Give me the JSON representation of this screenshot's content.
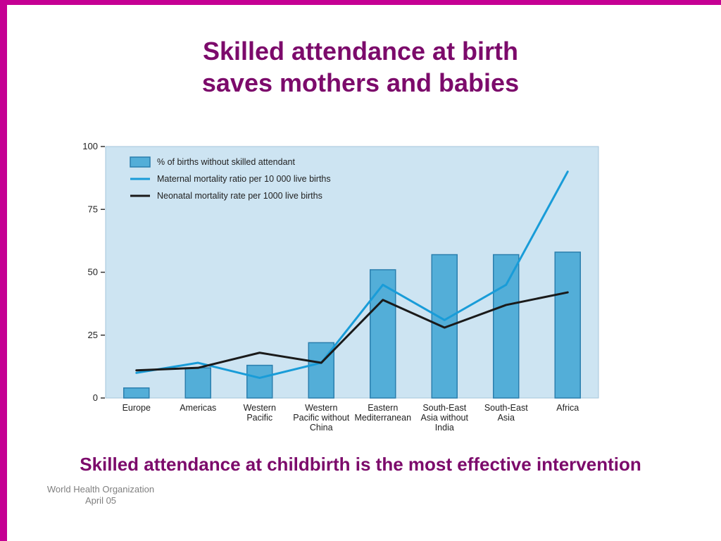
{
  "slide": {
    "title_line1": "Skilled attendance at birth",
    "title_line2": "saves mothers and babies",
    "caption": "Skilled attendance at childbirth is the most effective intervention",
    "footer_line1": "World Health Organization",
    "footer_line2": "April 05"
  },
  "colors": {
    "accent_purple": "#7c0a6b",
    "frame_magenta": "#c50093",
    "panel_bg": "#cde4f2",
    "panel_border": "#a5c6db",
    "bar_fill": "#53aed8",
    "bar_stroke": "#2b7fae",
    "maternal_line": "#199cd8",
    "neonatal_line": "#1a1a1a",
    "axis_text": "#222222",
    "footer_gray": "#7f7f7f"
  },
  "chart_data": {
    "type": "bar",
    "subtype": "bar-with-overlay-lines",
    "categories": [
      "Europe",
      "Americas",
      "Western\nPacific",
      "Western\nPacific without\nChina",
      "Eastern\nMediterranean",
      "South-East\nAsia without\nIndia",
      "South-East\nAsia",
      "Africa"
    ],
    "series": [
      {
        "name": "% of births without skilled attendant",
        "type": "bar",
        "values": [
          4,
          12,
          13,
          22,
          51,
          57,
          57,
          58
        ]
      },
      {
        "name": "Maternal mortality ratio per 10 000 live births",
        "type": "line",
        "values": [
          10,
          14,
          8,
          14,
          45,
          31,
          45,
          90
        ]
      },
      {
        "name": "Neonatal mortality rate per 1000 live births",
        "type": "line",
        "values": [
          11,
          12,
          18,
          14,
          39,
          28,
          37,
          42
        ]
      }
    ],
    "title": "",
    "xlabel": "",
    "ylabel": "",
    "ylim": [
      0,
      100
    ],
    "yticks": [
      0,
      25,
      50,
      75,
      100
    ],
    "grid": false,
    "legend_position": "top-left"
  }
}
